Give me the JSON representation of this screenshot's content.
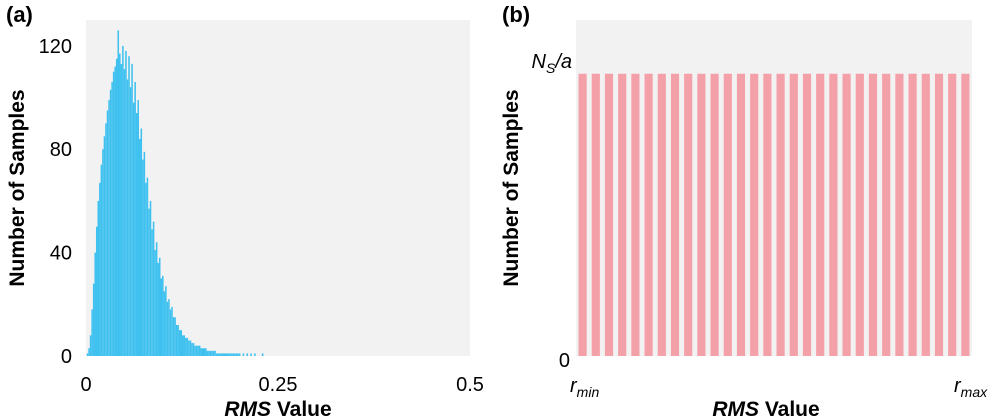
{
  "chart_data": [
    {
      "panel_label": "(a)",
      "type": "bar",
      "xlabel_italic": "RMS",
      "xlabel_rest": " Value",
      "ylabel": "Number of Samples",
      "xlim": [
        0,
        0.5
      ],
      "ylim": [
        0,
        130
      ],
      "x_ticks": [
        "0",
        "0.25",
        "0.5"
      ],
      "x_tick_values": [
        0,
        0.25,
        0.5
      ],
      "y_ticks": [
        "0",
        "40",
        "80",
        "120"
      ],
      "y_tick_values": [
        0,
        40,
        80,
        120
      ],
      "bar_color": "#3fc1f0",
      "plot_bg": "#f2f2f2",
      "bin_width": 0.002,
      "x": [
        0.002,
        0.004,
        0.006,
        0.008,
        0.01,
        0.012,
        0.014,
        0.016,
        0.018,
        0.02,
        0.022,
        0.024,
        0.026,
        0.028,
        0.03,
        0.032,
        0.034,
        0.036,
        0.038,
        0.04,
        0.042,
        0.044,
        0.046,
        0.048,
        0.05,
        0.052,
        0.054,
        0.056,
        0.058,
        0.06,
        0.062,
        0.064,
        0.066,
        0.068,
        0.07,
        0.072,
        0.074,
        0.076,
        0.078,
        0.08,
        0.082,
        0.084,
        0.086,
        0.088,
        0.09,
        0.092,
        0.094,
        0.096,
        0.098,
        0.1,
        0.102,
        0.104,
        0.106,
        0.108,
        0.11,
        0.112,
        0.114,
        0.116,
        0.118,
        0.12,
        0.122,
        0.124,
        0.126,
        0.128,
        0.13,
        0.132,
        0.134,
        0.136,
        0.138,
        0.14,
        0.142,
        0.144,
        0.146,
        0.148,
        0.15,
        0.152,
        0.154,
        0.156,
        0.158,
        0.16,
        0.162,
        0.164,
        0.166,
        0.168,
        0.17,
        0.172,
        0.174,
        0.176,
        0.178,
        0.18,
        0.182,
        0.184,
        0.186,
        0.188,
        0.19,
        0.192,
        0.194,
        0.196,
        0.198,
        0.2,
        0.205,
        0.21,
        0.215,
        0.22,
        0.23
      ],
      "values": [
        1,
        3,
        8,
        18,
        28,
        40,
        50,
        60,
        67,
        74,
        80,
        85,
        90,
        95,
        99,
        103,
        106,
        110,
        112,
        115,
        126,
        117,
        113,
        120,
        111,
        118,
        107,
        116,
        104,
        113,
        98,
        106,
        94,
        99,
        84,
        88,
        76,
        79,
        67,
        69,
        57,
        60,
        49,
        52,
        41,
        44,
        36,
        38,
        30,
        31,
        25,
        27,
        21,
        22,
        18,
        19,
        15,
        15,
        12,
        12,
        10,
        10,
        8,
        8,
        7,
        7,
        6,
        6,
        5,
        5,
        4,
        4,
        4,
        4,
        3,
        3,
        3,
        3,
        2,
        2,
        2,
        2,
        2,
        2,
        1,
        1,
        1,
        1,
        1,
        1,
        1,
        1,
        1,
        1,
        1,
        1,
        1,
        1,
        1,
        1,
        1,
        1,
        1,
        1,
        1
      ]
    },
    {
      "panel_label": "(b)",
      "type": "bar",
      "xlabel_italic": "RMS",
      "xlabel_rest": " Value",
      "ylabel": "Number of Samples",
      "y_tick_zero": "0",
      "y_tick_top_main": "N",
      "y_tick_top_sub": "S",
      "y_tick_top_rest": "/a",
      "x_tick_left_main": "r",
      "x_tick_left_sub": "min",
      "x_tick_right_main": "r",
      "x_tick_right_sub": "max",
      "bar_count": 30,
      "bar_value_fraction": 0.84,
      "bar_color": "#f4a0a8",
      "plot_bg": "#f2f2f2"
    }
  ]
}
